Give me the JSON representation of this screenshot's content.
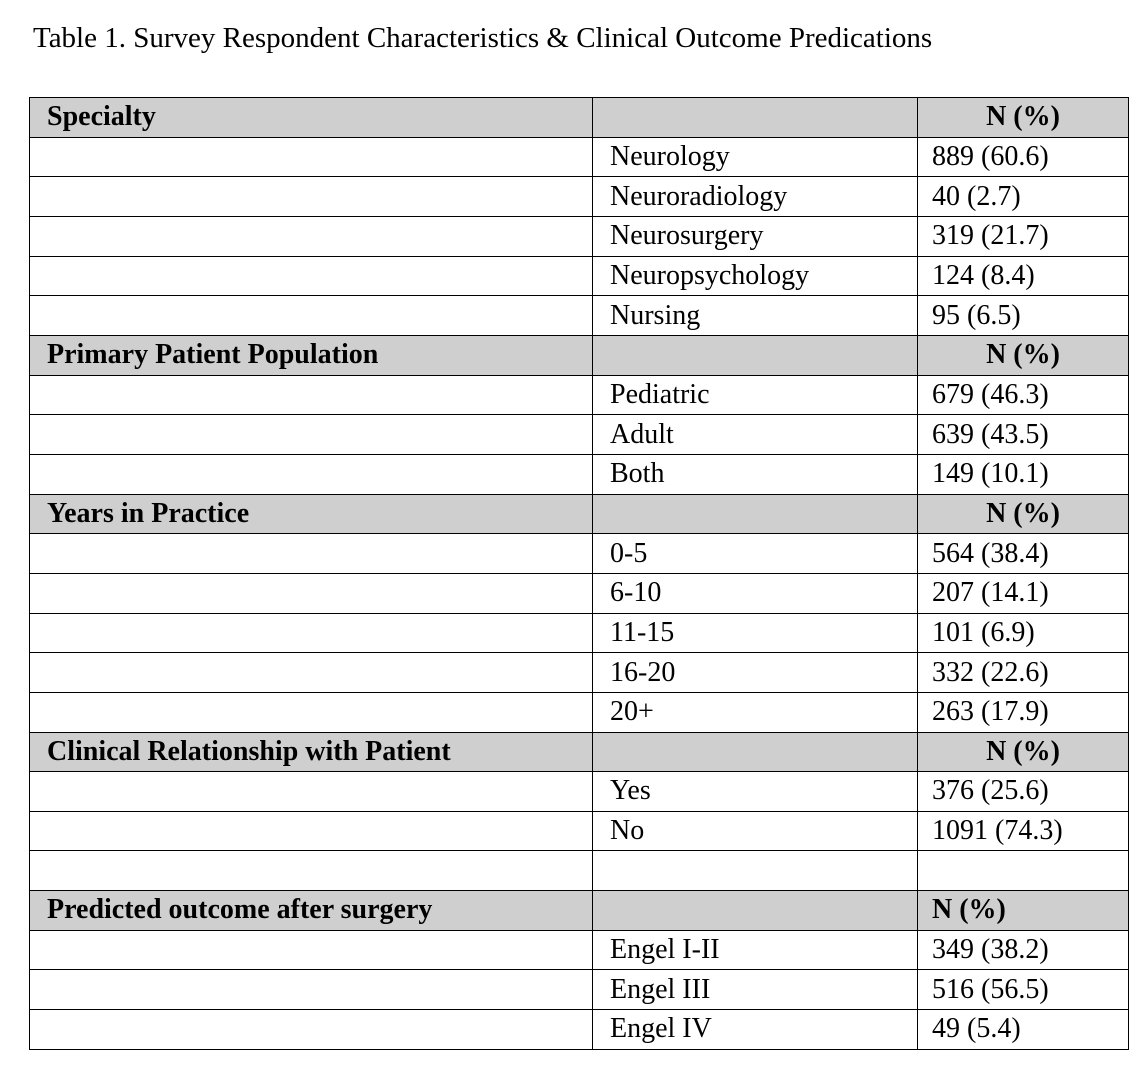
{
  "title": "Table 1. Survey Respondent Characteristics & Clinical Outcome Predications",
  "table": {
    "sections": [
      {
        "heading": "Specialty",
        "column_header": "N (%)",
        "rows": [
          [
            "Neurology",
            "889 (60.6)"
          ],
          [
            "Neuroradiology",
            "40 (2.7)"
          ],
          [
            "Neurosurgery",
            "319 (21.7)"
          ],
          [
            "Neuropsychology",
            "124 (8.4)"
          ],
          [
            "Nursing",
            "95 (6.5)"
          ]
        ]
      },
      {
        "heading": "Primary Patient Population",
        "column_header": "N (%)",
        "rows": [
          [
            "Pediatric",
            "679 (46.3)"
          ],
          [
            "Adult",
            "639 (43.5)"
          ],
          [
            "Both",
            "149 (10.1)"
          ]
        ]
      },
      {
        "heading": "Years in Practice",
        "column_header": "N (%)",
        "rows": [
          [
            "0-5",
            "564 (38.4)"
          ],
          [
            "6-10",
            "207 (14.1)"
          ],
          [
            "11-15",
            "101 (6.9)"
          ],
          [
            "16-20",
            "332 (22.6)"
          ],
          [
            "20+",
            "263 (17.9)"
          ]
        ]
      },
      {
        "heading": "Clinical Relationship with Patient",
        "column_header": "N (%)",
        "rows": [
          [
            "Yes",
            "376 (25.6)"
          ],
          [
            "No",
            "1091 (74.3)"
          ]
        ]
      },
      {
        "heading": "Predicted outcome after surgery",
        "column_header": "N (%)",
        "rows": [
          [
            "Engel I-II",
            "349 (38.2)"
          ],
          [
            "Engel III",
            "516 (56.5)"
          ],
          [
            "Engel IV",
            "49 (5.4)"
          ]
        ]
      }
    ]
  }
}
